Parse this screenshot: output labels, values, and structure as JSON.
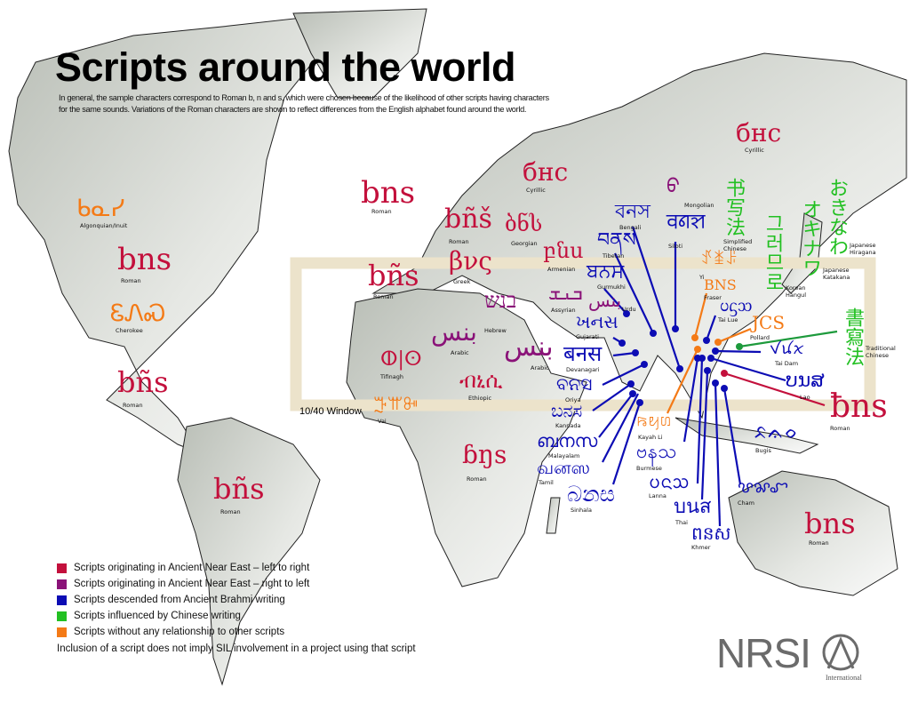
{
  "title": "Scripts around the world",
  "intro": "In general, the sample characters correspond to Roman b, n and s, which were chosen because of the likelihood of other scripts having characters for the same sounds. Variations of the Roman characters are shown to reflect differences from the English alphabet found around the world.",
  "window_label": "10/40 Window",
  "colors": {
    "near_east_ltr": "#c3103c",
    "near_east_rtl": "#8a1278",
    "brahmi": "#0c0cb4",
    "chinese": "#22c022",
    "isolate": "#f47a16",
    "window": "#ece3cb",
    "land": "#d2d5cf"
  },
  "legend": [
    {
      "label": "Scripts originating in Ancient Near East – left to right",
      "color": "#c3103c"
    },
    {
      "label": "Scripts originating in Ancient Near East – right to left",
      "color": "#8a1278"
    },
    {
      "label": "Scripts descended from Ancient Brahmi writing",
      "color": "#0c0cb4"
    },
    {
      "label": "Scripts influenced by Chinese writing",
      "color": "#22c022"
    },
    {
      "label": "Scripts without any relationship to other scripts",
      "color": "#f47a16"
    }
  ],
  "note": "Inclusion of a script does not imply SIL involvement in a project using that script",
  "logo": {
    "text": "NRSI",
    "sub": "International",
    "mark": "SIL"
  },
  "scripts": [
    {
      "name": "Algonquian/Inuit",
      "sample": "ᑲᓇᓯ",
      "group": "isolate"
    },
    {
      "name": "Cherokee",
      "sample": "ᏋᏁᏍ",
      "group": "isolate"
    },
    {
      "name": "Roman",
      "sample": "bns",
      "group": "near_east_ltr"
    },
    {
      "name": "Roman",
      "sample": "bñs",
      "group": "near_east_ltr"
    },
    {
      "name": "Roman",
      "sample": "bñs",
      "group": "near_east_ltr"
    },
    {
      "name": "Roman",
      "sample": "bns",
      "group": "near_east_ltr"
    },
    {
      "name": "Roman",
      "sample": "bñš",
      "group": "near_east_ltr"
    },
    {
      "name": "Cyrillic",
      "sample": "бнс",
      "group": "near_east_ltr"
    },
    {
      "name": "Cyrillic",
      "sample": "бнс",
      "group": "near_east_ltr"
    },
    {
      "name": "Georgian",
      "sample": "ბნს",
      "group": "near_east_ltr"
    },
    {
      "name": "Greek",
      "sample": "βνς",
      "group": "near_east_ltr"
    },
    {
      "name": "Armenian",
      "sample": "բնս",
      "group": "near_east_ltr"
    },
    {
      "name": "Roman",
      "sample": "bñs",
      "group": "near_east_ltr"
    },
    {
      "name": "Assyrian",
      "sample": "ܒܢܫ",
      "group": "near_east_rtl"
    },
    {
      "name": "Hebrew",
      "sample": "בנש",
      "group": "near_east_rtl"
    },
    {
      "name": "Arabic",
      "sample": "بنس",
      "group": "near_east_rtl"
    },
    {
      "name": "Arabic",
      "sample": "بنس",
      "group": "near_east_rtl"
    },
    {
      "name": "Urdu",
      "sample": "بنس",
      "group": "near_east_rtl"
    },
    {
      "name": "Tifinagh",
      "sample": "ⵀ|ⵙ",
      "group": "near_east_ltr"
    },
    {
      "name": "Ethiopic",
      "sample": "ብኒሲ",
      "group": "near_east_ltr"
    },
    {
      "name": "Vai",
      "sample": "ꔓꕌꔻ",
      "group": "isolate"
    },
    {
      "name": "Roman",
      "sample": "ɓŋs",
      "group": "near_east_ltr"
    },
    {
      "name": "Roman",
      "sample": "bns",
      "group": "near_east_ltr"
    },
    {
      "name": "Roman",
      "sample": "ƀns",
      "group": "near_east_ltr"
    },
    {
      "name": "Bengali",
      "sample": "বনস",
      "group": "brahmi"
    },
    {
      "name": "Tibetan",
      "sample": "བནས",
      "group": "brahmi"
    },
    {
      "name": "Gurmukhi",
      "sample": "ਬਨਸ",
      "group": "brahmi"
    },
    {
      "name": "Gujarati",
      "sample": "ખનસ",
      "group": "brahmi"
    },
    {
      "name": "Devanagari",
      "sample": "बनस",
      "group": "brahmi"
    },
    {
      "name": "Oriya",
      "sample": "ବନସ",
      "group": "brahmi"
    },
    {
      "name": "Kannada",
      "sample": "ಬನಸ",
      "group": "brahmi"
    },
    {
      "name": "Malayalam",
      "sample": "ബനസ",
      "group": "brahmi"
    },
    {
      "name": "Tamil",
      "sample": "வனஸ",
      "group": "brahmi"
    },
    {
      "name": "Sinhala",
      "sample": "බනස",
      "group": "brahmi"
    },
    {
      "name": "Siloti",
      "sample": "ꠛꠘꠡ",
      "group": "brahmi"
    },
    {
      "name": "Mongolian",
      "sample": "ᠪ",
      "group": "near_east_rtl"
    },
    {
      "name": "Yi",
      "sample": "ꀋꁧꌠ",
      "group": "isolate"
    },
    {
      "name": "Fraser",
      "sample": "BNS",
      "group": "isolate"
    },
    {
      "name": "Tai Lue",
      "sample": "ᦢᦓᦉ",
      "group": "brahmi"
    },
    {
      "name": "Pollard",
      "sample": "JCS",
      "group": "isolate"
    },
    {
      "name": "Tai Dam",
      "sample": "ꪚꪙꪎ",
      "group": "brahmi"
    },
    {
      "name": "Lao",
      "sample": "ບນສ",
      "group": "brahmi"
    },
    {
      "name": "Kayah Li",
      "sample": "ꤒꤟꤛ",
      "group": "isolate"
    },
    {
      "name": "Burmese",
      "sample": "ဗနသ",
      "group": "brahmi"
    },
    {
      "name": "Lanna",
      "sample": "ᨷᨶᩈ",
      "group": "brahmi"
    },
    {
      "name": "Thai",
      "sample": "บนส",
      "group": "brahmi"
    },
    {
      "name": "Khmer",
      "sample": "ពនស",
      "group": "brahmi"
    },
    {
      "name": "Cham",
      "sample": "ꨝꨗꨧ",
      "group": "brahmi"
    },
    {
      "name": "Bugis",
      "sample": "ᨅᨊᨔ",
      "group": "brahmi"
    },
    {
      "name": "Simplified Chinese",
      "sample": "书写法",
      "group": "chinese"
    },
    {
      "name": "Japanese Hiragana",
      "sample": "おきなわ",
      "group": "chinese"
    },
    {
      "name": "Japanese Katakana",
      "sample": "オキナワ",
      "group": "chinese"
    },
    {
      "name": "Korean Hangul",
      "sample": "그러므로",
      "group": "chinese"
    },
    {
      "name": "Traditional Chinese",
      "sample": "書寫法",
      "group": "chinese"
    }
  ]
}
